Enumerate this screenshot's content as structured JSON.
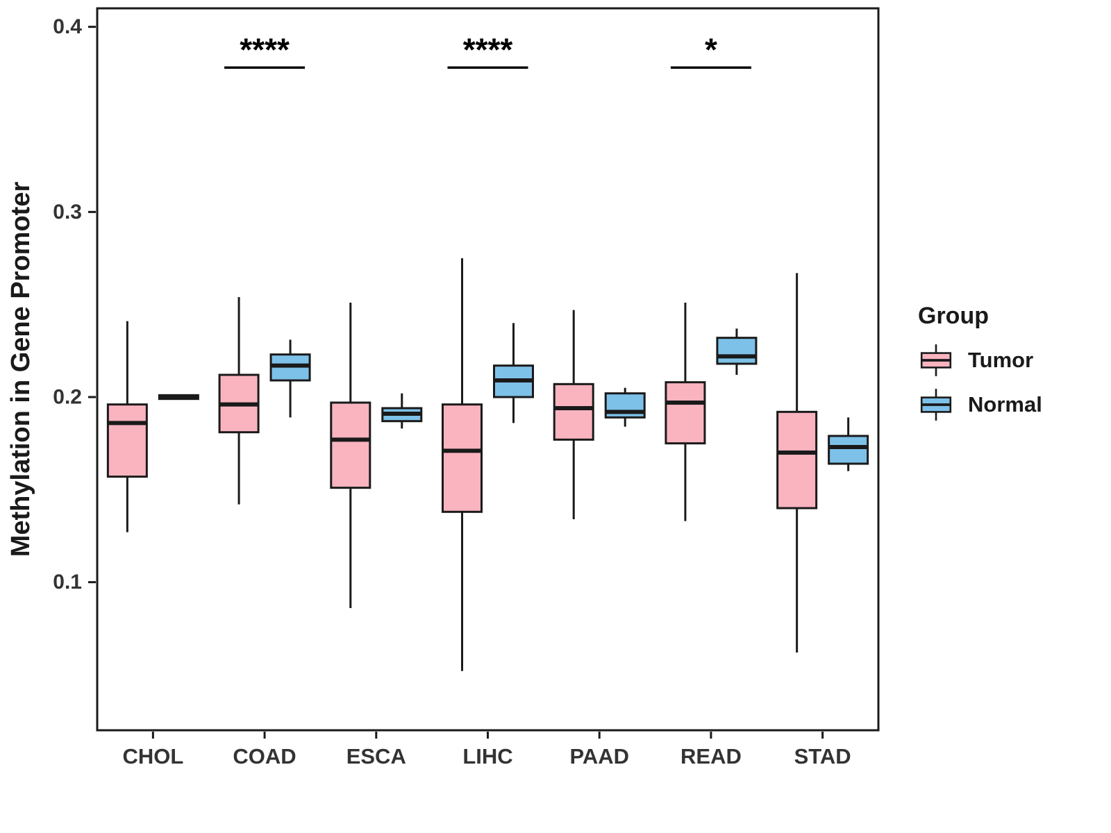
{
  "chart_data": {
    "type": "boxplot",
    "title": "",
    "ylabel": "Methylation in Gene Promoter",
    "xlabel": "",
    "legend_title": "Group",
    "legend_position": "right",
    "grid": false,
    "ylim": [
      0.02,
      0.41
    ],
    "yticks": [
      0.1,
      0.2,
      0.3,
      0.4
    ],
    "categories": [
      "CHOL",
      "COAD",
      "ESCA",
      "LIHC",
      "PAAD",
      "READ",
      "STAD"
    ],
    "series": [
      {
        "name": "Tumor",
        "color": "#F9B4C0",
        "boxes": [
          {
            "min": 0.127,
            "q1": 0.157,
            "median": 0.186,
            "q3": 0.196,
            "max": 0.241
          },
          {
            "min": 0.142,
            "q1": 0.181,
            "median": 0.196,
            "q3": 0.212,
            "max": 0.254
          },
          {
            "min": 0.086,
            "q1": 0.151,
            "median": 0.177,
            "q3": 0.197,
            "max": 0.251
          },
          {
            "min": 0.052,
            "q1": 0.138,
            "median": 0.171,
            "q3": 0.196,
            "max": 0.275
          },
          {
            "min": 0.134,
            "q1": 0.177,
            "median": 0.194,
            "q3": 0.207,
            "max": 0.247
          },
          {
            "min": 0.133,
            "q1": 0.175,
            "median": 0.197,
            "q3": 0.208,
            "max": 0.251
          },
          {
            "min": 0.062,
            "q1": 0.14,
            "median": 0.17,
            "q3": 0.192,
            "max": 0.267
          }
        ]
      },
      {
        "name": "Normal",
        "color": "#7EC1E8",
        "boxes": [
          {
            "min": 0.199,
            "q1": 0.199,
            "median": 0.2,
            "q3": 0.201,
            "max": 0.201
          },
          {
            "min": 0.189,
            "q1": 0.209,
            "median": 0.217,
            "q3": 0.223,
            "max": 0.231
          },
          {
            "min": 0.183,
            "q1": 0.187,
            "median": 0.191,
            "q3": 0.194,
            "max": 0.202
          },
          {
            "min": 0.186,
            "q1": 0.2,
            "median": 0.209,
            "q3": 0.217,
            "max": 0.24
          },
          {
            "min": 0.184,
            "q1": 0.189,
            "median": 0.192,
            "q3": 0.202,
            "max": 0.205
          },
          {
            "min": 0.212,
            "q1": 0.218,
            "median": 0.222,
            "q3": 0.232,
            "max": 0.237
          },
          {
            "min": 0.16,
            "q1": 0.164,
            "median": 0.173,
            "q3": 0.179,
            "max": 0.189
          }
        ]
      }
    ],
    "significance": [
      {
        "category": "COAD",
        "label": "****",
        "bar_y": 0.378
      },
      {
        "category": "LIHC",
        "label": "****",
        "bar_y": 0.378
      },
      {
        "category": "READ",
        "label": "*",
        "bar_y": 0.378
      }
    ]
  }
}
